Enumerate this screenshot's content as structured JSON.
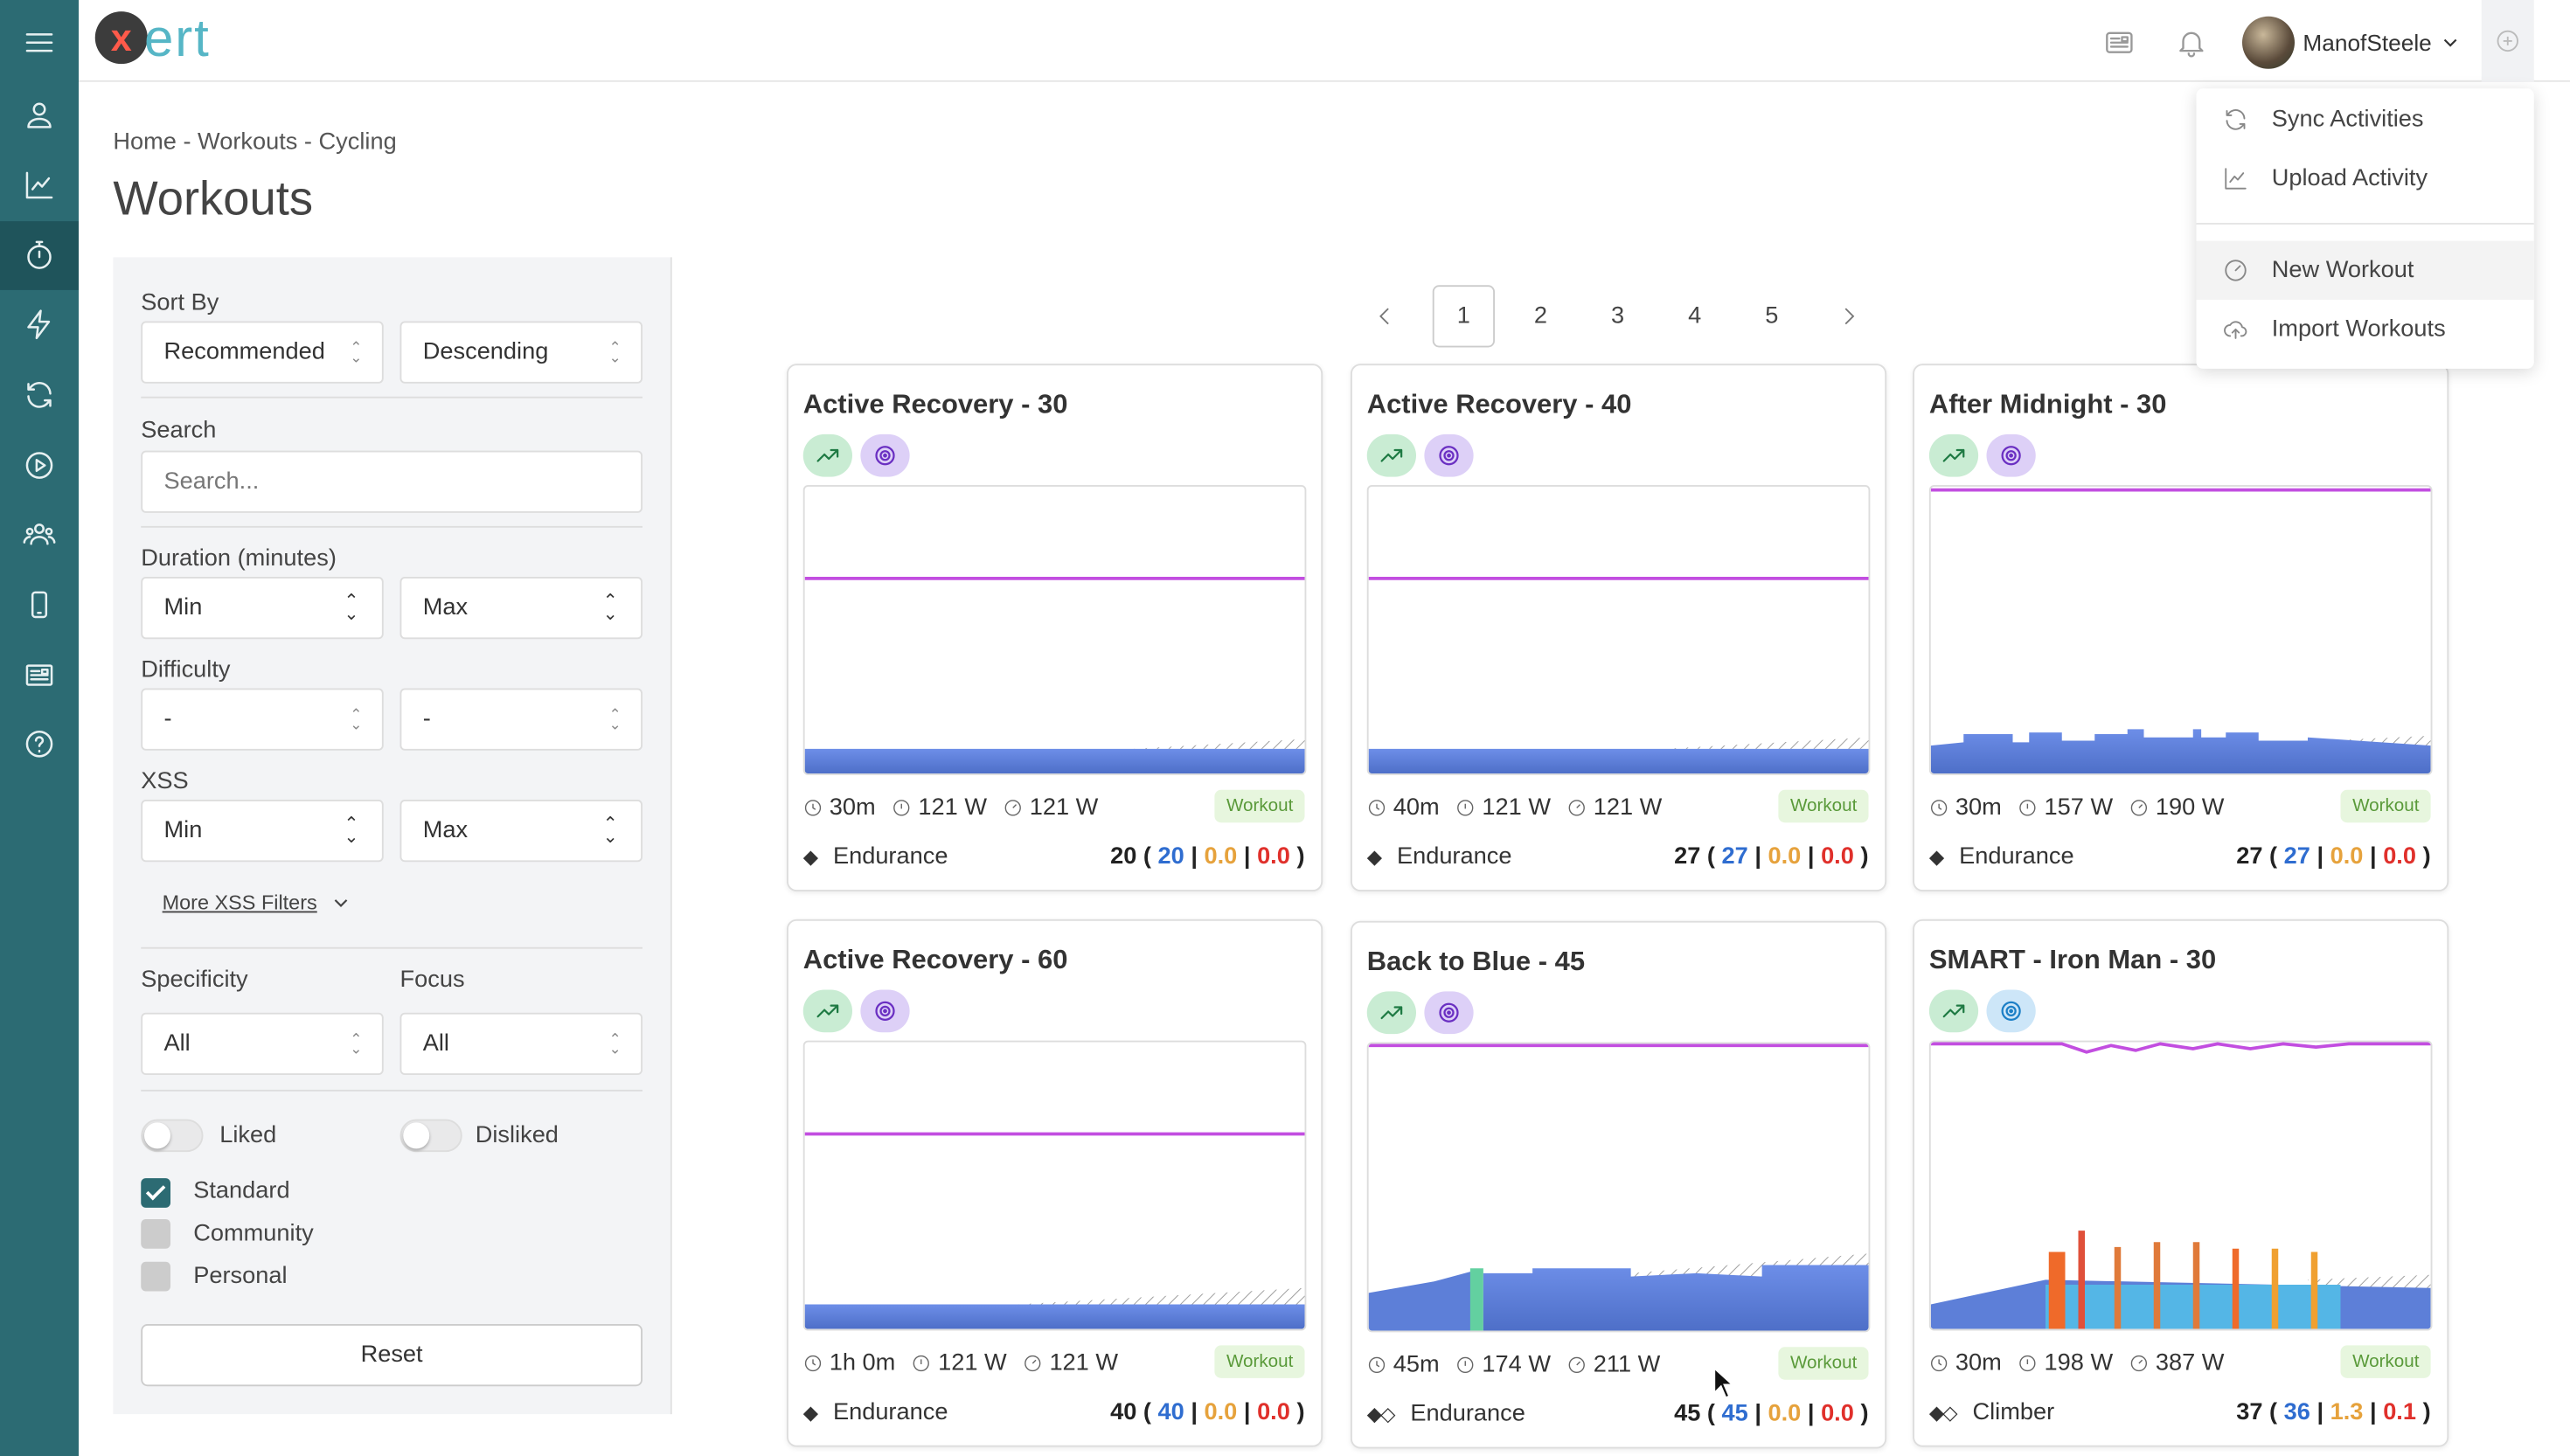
{
  "app": {
    "logo_letter": "x",
    "logo_text": "ert"
  },
  "sidebar": {
    "icons": [
      "menu-icon",
      "person-icon",
      "chart-line-icon",
      "stopwatch-icon",
      "bolt-icon",
      "sync-icon",
      "play-circle-icon",
      "group-icon",
      "mobile-icon",
      "newspaper-icon",
      "help-icon"
    ],
    "active": "stopwatch-icon"
  },
  "header": {
    "user_name": "ManofSteele",
    "icons": [
      "news-icon",
      "bell-icon",
      "add-icon"
    ]
  },
  "dropdown": {
    "items": [
      {
        "label": "Sync Activities",
        "icon": "sync-icon"
      },
      {
        "label": "Upload Activity",
        "icon": "upload-chart-icon"
      },
      {
        "label": "New Workout",
        "icon": "gauge-icon"
      },
      {
        "label": "Import Workouts",
        "icon": "cloud-upload-icon"
      }
    ]
  },
  "breadcrumb": "Home - Workouts - Cycling",
  "page_title": "Workouts",
  "filters": {
    "sort_by_label": "Sort By",
    "sort_by_value": "Recommended",
    "order_value": "Descending",
    "search_label": "Search",
    "search_placeholder": "Search...",
    "duration_label": "Duration (minutes)",
    "duration_min": "Min",
    "duration_max": "Max",
    "difficulty_label": "Difficulty",
    "difficulty_min": "-",
    "difficulty_max": "-",
    "xss_label": "XSS",
    "xss_min": "Min",
    "xss_max": "Max",
    "more_xss": "More XSS Filters",
    "specificity_label": "Specificity",
    "specificity_value": "All",
    "focus_label": "Focus",
    "focus_value": "All",
    "liked": "Liked",
    "disliked": "Disliked",
    "standard": "Standard",
    "community": "Community",
    "personal": "Personal",
    "reset": "Reset"
  },
  "pagination": {
    "pages": [
      "1",
      "2",
      "3",
      "4",
      "5"
    ],
    "active": "1"
  },
  "workouts": [
    {
      "title": "Active Recovery - 30",
      "duration": "30m",
      "power1": "121 W",
      "power2": "121 W",
      "tag": "Workout",
      "focus_icon": "◆",
      "focus": "Endurance",
      "xss": "20",
      "xss_low": "20",
      "xss_high": "0.0",
      "xss_peak": "0.0",
      "badges": [
        "trend",
        "target-purple"
      ]
    },
    {
      "title": "Active Recovery - 40",
      "duration": "40m",
      "power1": "121 W",
      "power2": "121 W",
      "tag": "Workout",
      "focus_icon": "◆",
      "focus": "Endurance",
      "xss": "27",
      "xss_low": "27",
      "xss_high": "0.0",
      "xss_peak": "0.0",
      "badges": [
        "trend",
        "target-purple"
      ]
    },
    {
      "title": "After Midnight - 30",
      "duration": "30m",
      "power1": "157 W",
      "power2": "190 W",
      "tag": "Workout",
      "focus_icon": "◆",
      "focus": "Endurance",
      "xss": "27",
      "xss_low": "27",
      "xss_high": "0.0",
      "xss_peak": "0.0",
      "badges": [
        "trend",
        "target-purple"
      ]
    },
    {
      "title": "Active Recovery - 60",
      "duration": "1h 0m",
      "power1": "121 W",
      "power2": "121 W",
      "tag": "Workout",
      "focus_icon": "◆",
      "focus": "Endurance",
      "xss": "40",
      "xss_low": "40",
      "xss_high": "0.0",
      "xss_peak": "0.0",
      "badges": [
        "trend",
        "target-purple"
      ]
    },
    {
      "title": "Back to Blue - 45",
      "duration": "45m",
      "power1": "174 W",
      "power2": "211 W",
      "tag": "Workout",
      "focus_icon": "◆◇",
      "focus": "Endurance",
      "xss": "45",
      "xss_low": "45",
      "xss_high": "0.0",
      "xss_peak": "0.0",
      "badges": [
        "trend",
        "target-purple"
      ]
    },
    {
      "title": "SMART - Iron Man - 30",
      "duration": "30m",
      "power1": "198 W",
      "power2": "387 W",
      "tag": "Workout",
      "focus_icon": "◆◇",
      "focus": "Climber",
      "xss": "37",
      "xss_low": "36",
      "xss_high": "1.3",
      "xss_peak": "0.1",
      "badges": [
        "trend",
        "target-blue"
      ]
    }
  ],
  "colors": {
    "sidebar": "#2c6b73",
    "accent": "#56b6c6",
    "xss_low": "#2f6dd0",
    "xss_high": "#e6a23c",
    "xss_peak": "#e0302b"
  }
}
